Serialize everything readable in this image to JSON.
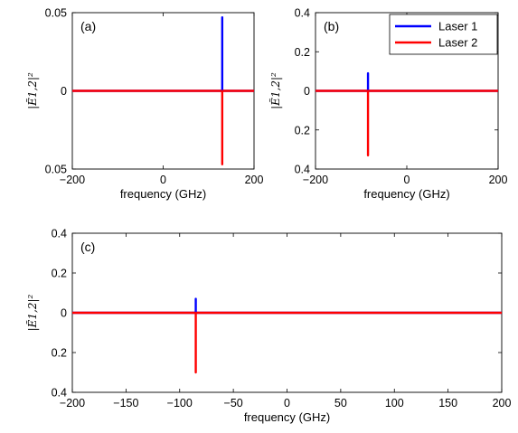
{
  "colors": {
    "laser1": "#0000ff",
    "laser2": "#ff0000"
  },
  "legend": [
    "Laser 1",
    "Laser 2"
  ],
  "chart_data": [
    {
      "type": "line",
      "panel_label": "(a)",
      "xlabel": "frequency (GHz)",
      "ylabel": "|Ẽ1,2|²",
      "xlim": [
        -200,
        200
      ],
      "ylim": [
        -0.05,
        0.05
      ],
      "x_ticks": [
        -200,
        0,
        200
      ],
      "x_tick_labels": [
        "−200",
        "0",
        "200"
      ],
      "y_ticks": [
        0.05,
        0,
        -0.05
      ],
      "y_tick_labels": [
        "0.05",
        "0",
        "0.05"
      ],
      "series": [
        {
          "name": "Laser 1",
          "color": "#0000ff",
          "peak_freq": 130,
          "peak_value": 0.047
        },
        {
          "name": "Laser 2",
          "color": "#ff0000",
          "peak_freq": 130,
          "peak_value": -0.047
        }
      ]
    },
    {
      "type": "line",
      "panel_label": "(b)",
      "xlabel": "frequency (GHz)",
      "ylabel": "|Ẽ1,2|²",
      "xlim": [
        -200,
        200
      ],
      "ylim": [
        -0.4,
        0.4
      ],
      "x_ticks": [
        -200,
        0,
        200
      ],
      "x_tick_labels": [
        "−200",
        "0",
        "200"
      ],
      "y_ticks": [
        0.4,
        0.2,
        0,
        -0.2,
        -0.4
      ],
      "y_tick_labels": [
        "0.4",
        "0.2",
        "0",
        "0.2",
        "0.4"
      ],
      "legend": "top-right",
      "series": [
        {
          "name": "Laser 1",
          "color": "#0000ff",
          "peak_freq": -85,
          "peak_value": 0.09
        },
        {
          "name": "Laser 2",
          "color": "#ff0000",
          "peak_freq": -85,
          "peak_value": -0.33
        }
      ]
    },
    {
      "type": "line",
      "panel_label": "(c)",
      "xlabel": "frequency (GHz)",
      "ylabel": "|Ẽ1,2|²",
      "xlim": [
        -200,
        200
      ],
      "ylim": [
        -0.4,
        0.4
      ],
      "x_ticks": [
        -200,
        -150,
        -100,
        -50,
        0,
        50,
        100,
        150,
        200
      ],
      "x_tick_labels": [
        "−200",
        "−150",
        "−100",
        "−50",
        "0",
        "50",
        "100",
        "150",
        "200"
      ],
      "y_ticks": [
        0.4,
        0.2,
        0,
        -0.2,
        -0.4
      ],
      "y_tick_labels": [
        "0.4",
        "0.2",
        "0",
        "0.2",
        "0.4"
      ],
      "series": [
        {
          "name": "Laser 1",
          "color": "#0000ff",
          "peak_freq": -85,
          "peak_value": 0.07
        },
        {
          "name": "Laser 2",
          "color": "#ff0000",
          "peak_freq": -85,
          "peak_value": -0.3
        }
      ]
    }
  ]
}
